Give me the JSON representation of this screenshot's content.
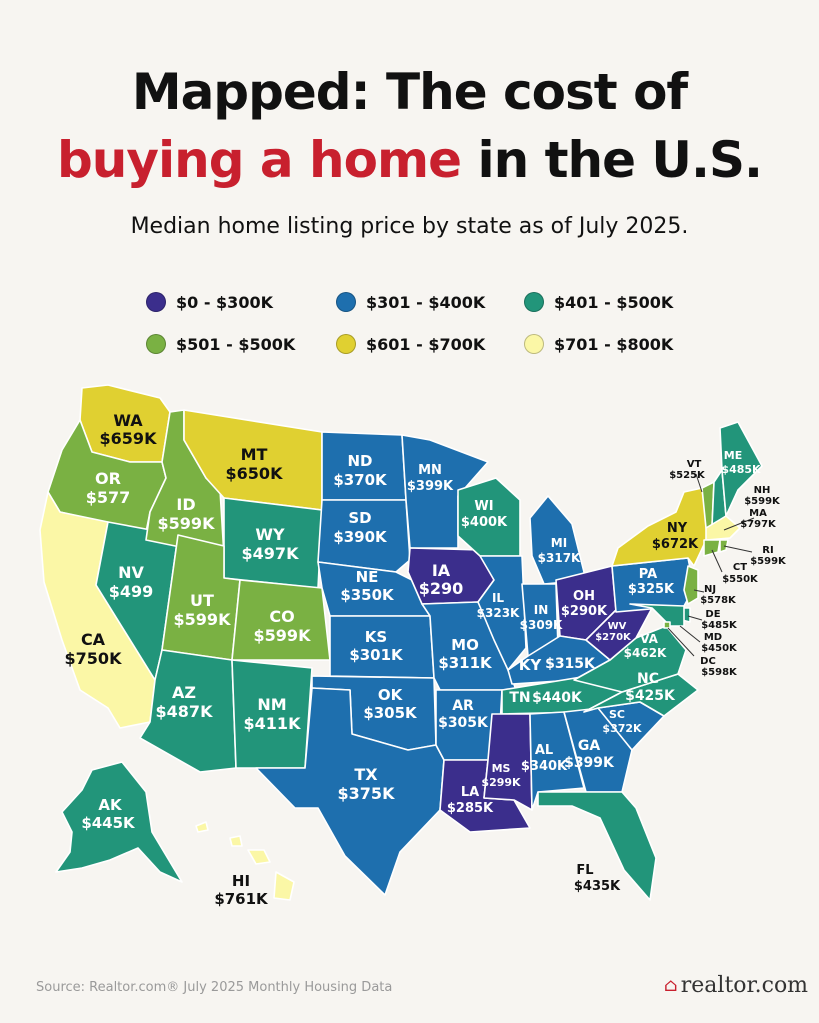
{
  "header": {
    "title_line1": "Mapped: The cost of",
    "title_line2_highlight": "buying a home",
    "title_line2_rest": " in the U.S.",
    "subtitle": "Median home listing price by state as of July 2025."
  },
  "colors": {
    "c1": "#3b2e8c",
    "c2": "#1e6fae",
    "c3": "#22957a",
    "c4": "#7ab143",
    "c5": "#e0d031",
    "c6": "#fbf7a6",
    "title_red": "#c8202e"
  },
  "legend": [
    {
      "label": "$0 - $300K",
      "color": "#3b2e8c"
    },
    {
      "label": "$301 - $400K",
      "color": "#1e6fae"
    },
    {
      "label": "$401 - $500K",
      "color": "#22957a"
    },
    {
      "label": "$501 - $500K",
      "color": "#7ab143"
    },
    {
      "label": "$601 - $700K",
      "color": "#e0d031"
    },
    {
      "label": "$701 - $800K",
      "color": "#fbf7a6"
    }
  ],
  "states": {
    "WA": {
      "abbr": "WA",
      "price": "$659K"
    },
    "OR": {
      "abbr": "OR",
      "price": "$577"
    },
    "CA": {
      "abbr": "CA",
      "price": "$750K"
    },
    "NV": {
      "abbr": "NV",
      "price": "$499"
    },
    "ID": {
      "abbr": "ID",
      "price": "$599K"
    },
    "MT": {
      "abbr": "MT",
      "price": "$650K"
    },
    "WY": {
      "abbr": "WY",
      "price": "$497K"
    },
    "UT": {
      "abbr": "UT",
      "price": "$599K"
    },
    "CO": {
      "abbr": "CO",
      "price": "$599K"
    },
    "AZ": {
      "abbr": "AZ",
      "price": "$487K"
    },
    "NM": {
      "abbr": "NM",
      "price": "$411K"
    },
    "ND": {
      "abbr": "ND",
      "price": "$370K"
    },
    "SD": {
      "abbr": "SD",
      "price": "$390K"
    },
    "NE": {
      "abbr": "NE",
      "price": "$350K"
    },
    "KS": {
      "abbr": "KS",
      "price": "$301K"
    },
    "OK": {
      "abbr": "OK",
      "price": "$305K"
    },
    "TX": {
      "abbr": "TX",
      "price": "$375K"
    },
    "MN": {
      "abbr": "MN",
      "price": "$399K"
    },
    "IA": {
      "abbr": "IA",
      "price": "$290"
    },
    "MO": {
      "abbr": "MO",
      "price": "$311K"
    },
    "AR": {
      "abbr": "AR",
      "price": "$305K"
    },
    "LA": {
      "abbr": "LA",
      "price": "$285K"
    },
    "WI": {
      "abbr": "WI",
      "price": "$400K"
    },
    "IL": {
      "abbr": "IL",
      "price": "$323K"
    },
    "MI": {
      "abbr": "MI",
      "price": "$317K"
    },
    "IN": {
      "abbr": "IN",
      "price": "$309K"
    },
    "OH": {
      "abbr": "OH",
      "price": "$290K"
    },
    "KY": {
      "abbr": "KY",
      "price": "$315K"
    },
    "TN": {
      "abbr": "TN",
      "price": "$440K"
    },
    "MS": {
      "abbr": "MS",
      "price": "$299K"
    },
    "AL": {
      "abbr": "AL",
      "price": "$340K"
    },
    "GA": {
      "abbr": "GA",
      "price": "$399K"
    },
    "FL": {
      "abbr": "FL",
      "price": "$435K"
    },
    "SC": {
      "abbr": "SC",
      "price": "$372K"
    },
    "NC": {
      "abbr": "NC",
      "price": "$425K"
    },
    "VA": {
      "abbr": "VA",
      "price": "$462K"
    },
    "WV": {
      "abbr": "WV",
      "price": "$270K"
    },
    "PA": {
      "abbr": "PA",
      "price": "$325K"
    },
    "NY": {
      "abbr": "NY",
      "price": "$672K"
    },
    "ME": {
      "abbr": "ME",
      "price": "$485K"
    },
    "VT": {
      "abbr": "VT",
      "price": "$525K"
    },
    "NH": {
      "abbr": "NH",
      "price": "$599K"
    },
    "MA": {
      "abbr": "MA",
      "price": "$797K"
    },
    "RI": {
      "abbr": "RI",
      "price": "$599K"
    },
    "CT": {
      "abbr": "CT",
      "price": "$550K"
    },
    "NJ": {
      "abbr": "NJ",
      "price": "$578K"
    },
    "DE": {
      "abbr": "DE",
      "price": "$485K"
    },
    "MD": {
      "abbr": "MD",
      "price": "$450K"
    },
    "DC": {
      "abbr": "DC",
      "price": "$598K"
    },
    "AK": {
      "abbr": "AK",
      "price": "$445K"
    },
    "HI": {
      "abbr": "HI",
      "price": "$761K"
    }
  },
  "footer": {
    "source": "Source: Realtor.com® July 2025 Monthly Housing Data",
    "logo_text": "realtor.com"
  }
}
